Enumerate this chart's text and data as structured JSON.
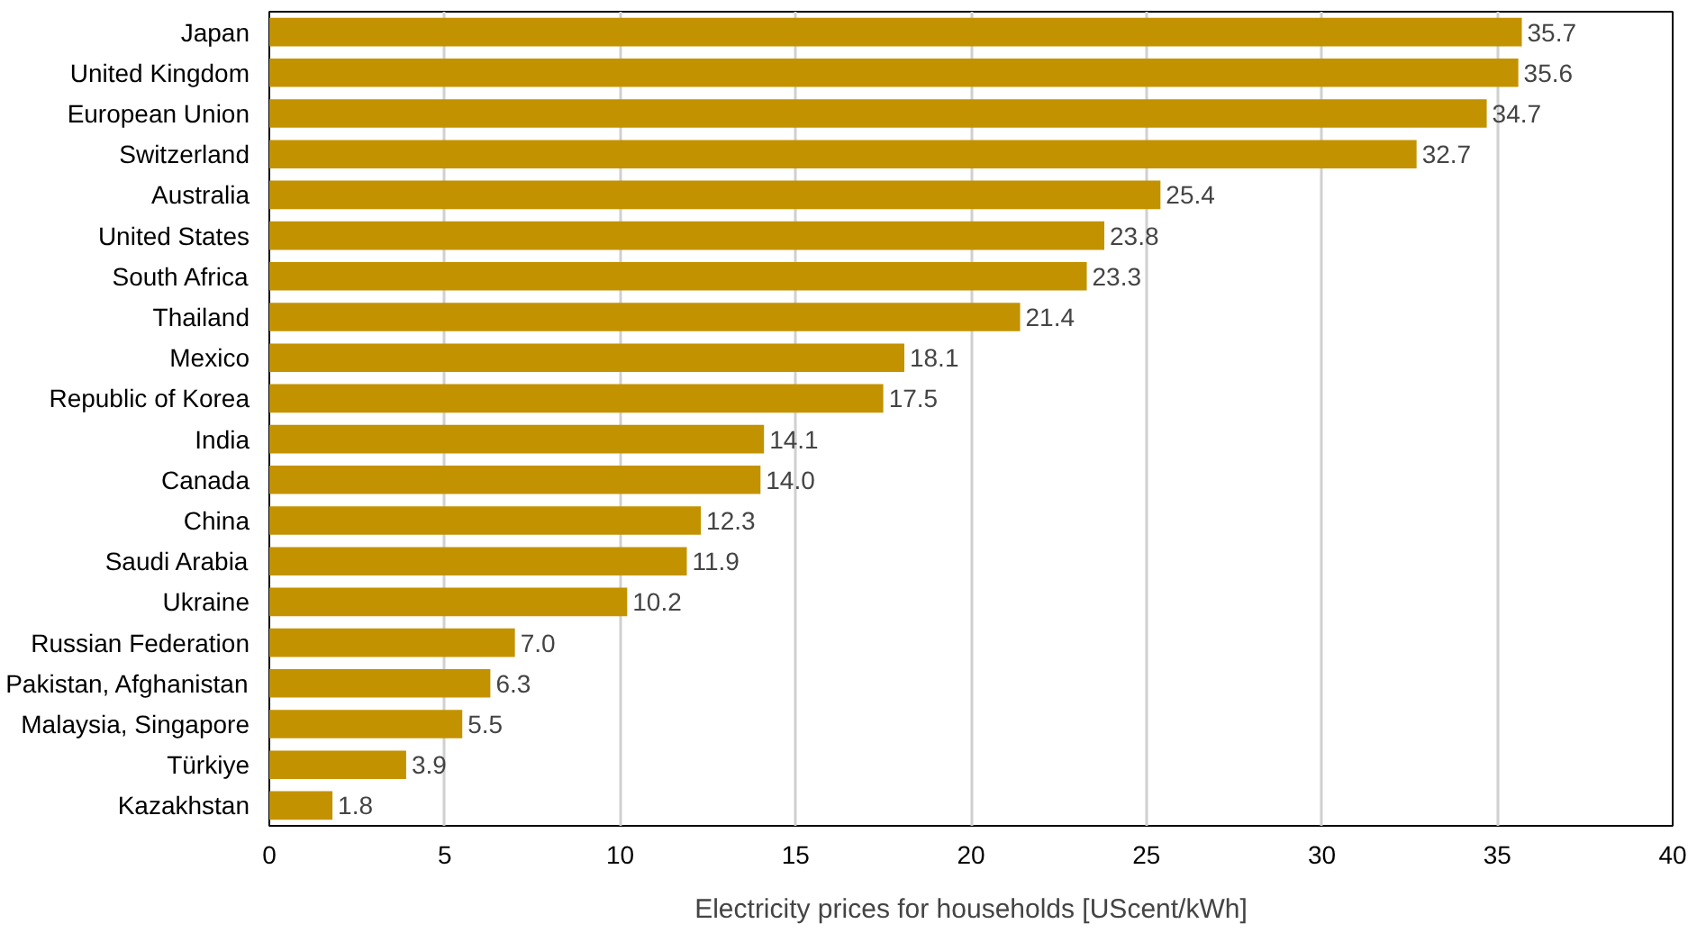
{
  "chart_data": {
    "type": "bar",
    "orientation": "horizontal",
    "xlabel": "Electricity prices for households [UScent/kWh]",
    "categories": [
      "Japan",
      "United Kingdom",
      "European Union",
      "Switzerland",
      "Australia",
      "United States",
      "South Africa",
      "Thailand",
      "Mexico",
      "Republic of Korea",
      "India",
      "Canada",
      "China",
      "Saudi Arabia",
      "Ukraine",
      "Russian Federation",
      "Pakistan, Afghanistan",
      "Malaysia, Singapore",
      "Türkiye",
      "Kazakhstan"
    ],
    "values": [
      35.7,
      35.6,
      34.7,
      32.7,
      25.4,
      23.8,
      23.3,
      21.4,
      18.1,
      17.5,
      14.1,
      14.0,
      12.3,
      11.9,
      10.2,
      7.0,
      6.3,
      5.5,
      3.9,
      1.8
    ],
    "value_labels": [
      "35.7",
      "35.6",
      "34.7",
      "32.7",
      "25.4",
      "23.8",
      "23.3",
      "21.4",
      "18.1",
      "17.5",
      "14.1",
      "14.0",
      "12.3",
      "11.9",
      "10.2",
      "7.0",
      "6.3",
      "5.5",
      "3.9",
      "1.8"
    ],
    "color": "#c39200",
    "xlim": [
      0,
      40
    ],
    "xticks": [
      0,
      5,
      10,
      15,
      20,
      25,
      30,
      35,
      40
    ],
    "grid": "x"
  }
}
